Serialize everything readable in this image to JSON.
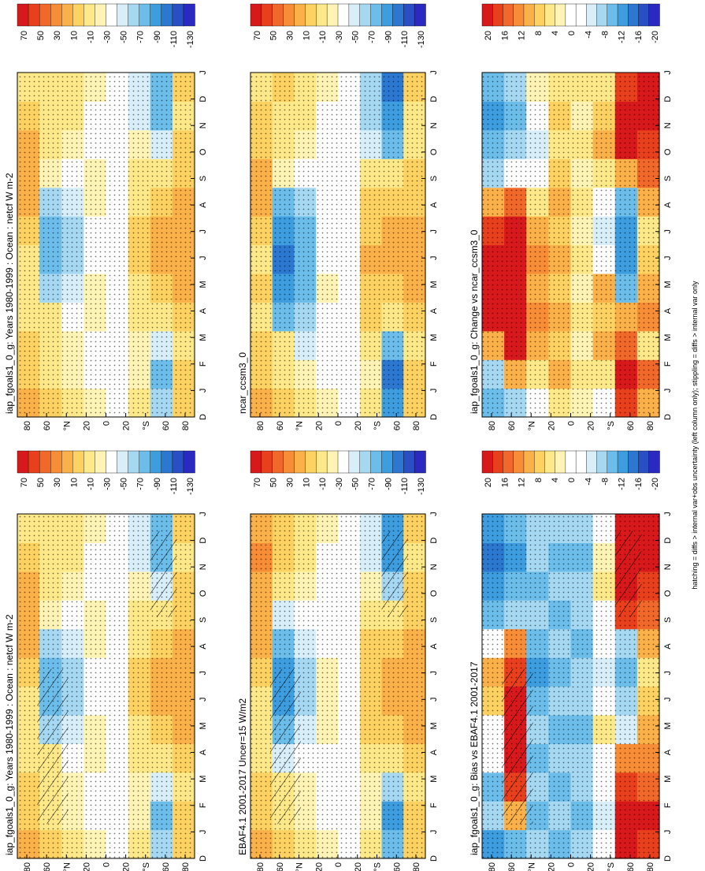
{
  "footer": "hatching = diffs > internal var+obs uncertainty (left column only); stippling = diffs > internal var only",
  "colorbars": {
    "abs": {
      "labels": [
        "70",
        "50",
        "30",
        "10",
        "-10",
        "-30",
        "-50",
        "-70",
        "-90",
        "-110",
        "-130"
      ],
      "colors": [
        "#d7191c",
        "#e8401d",
        "#f1692a",
        "#f78d36",
        "#fbb14a",
        "#fdd262",
        "#fde989",
        "#fff4b5",
        "#ffffff",
        "#d8eef8",
        "#a6d8f2",
        "#6cbdea",
        "#3d9ddf",
        "#2c77d0",
        "#2a4fc5",
        "#2a2ac0"
      ]
    },
    "diff": {
      "labels": [
        "20",
        "16",
        "12",
        "8",
        "4",
        "0",
        "-4",
        "-8",
        "-12",
        "-16",
        "-20"
      ],
      "colors": [
        "#d7191c",
        "#e8401d",
        "#f1692a",
        "#f78d36",
        "#fbb14a",
        "#fdd262",
        "#fde989",
        "#fff4b5",
        "#ffffff",
        "#ffffff",
        "#d8eef8",
        "#a6d8f2",
        "#6cbdea",
        "#3d9ddf",
        "#2c77d0",
        "#2a4fc5",
        "#2a2ac0"
      ]
    }
  },
  "chart_data": [
    {
      "type": "heatmap",
      "title": "iap_fgoals1_0_g: Years 1980-1999 : Ocean : netcf W m-2",
      "x_months": [
        "J",
        "F",
        "M",
        "A",
        "M",
        "J",
        "J",
        "A",
        "S",
        "O",
        "N",
        "D",
        "J"
      ],
      "x_start_label": "D",
      "y_ticks": [
        "80",
        "60",
        "°N",
        "20",
        "0",
        "20",
        "°S",
        "60",
        "80"
      ],
      "cells": [
        [
          "#fbb14a",
          "#fdd262",
          "#fdd262",
          "#fde989",
          "#fde989",
          "#fde989",
          "#fdd262",
          "#fbb14a",
          "#fbb14a",
          "#fbb14a",
          "#fdd262",
          "#fde989"
        ],
        [
          "#fdd262",
          "#fde989",
          "#fde989",
          "#fde989",
          "#a6d8f2",
          "#6cbdea",
          "#6cbdea",
          "#a6d8f2",
          "#fff4b5",
          "#fde989",
          "#fde989",
          "#fde989"
        ],
        [
          "#fde989",
          "#fff4b5",
          "#fff4b5",
          "#ffffff",
          "#d8eef8",
          "#a6d8f2",
          "#a6d8f2",
          "#d8eef8",
          "#ffffff",
          "#fff4b5",
          "#fde989",
          "#fde989"
        ],
        [
          "#fff4b5",
          "#ffffff",
          "#ffffff",
          "#fff4b5",
          "#fff4b5",
          "#ffffff",
          "#ffffff",
          "#fff4b5",
          "#fff4b5",
          "#ffffff",
          "#ffffff",
          "#fff4b5"
        ],
        [
          "#ffffff",
          "#ffffff",
          "#ffffff",
          "#ffffff",
          "#ffffff",
          "#ffffff",
          "#ffffff",
          "#ffffff",
          "#ffffff",
          "#ffffff",
          "#ffffff",
          "#ffffff"
        ],
        [
          "#fde989",
          "#fff4b5",
          "#fff4b5",
          "#fde989",
          "#fde989",
          "#fdd262",
          "#fdd262",
          "#fde989",
          "#fde989",
          "#fff4b5",
          "#d8eef8",
          "#d8eef8"
        ],
        [
          "#a6d8f2",
          "#6cbdea",
          "#d8eef8",
          "#fde989",
          "#fdd262",
          "#fbb14a",
          "#fbb14a",
          "#fdd262",
          "#fde989",
          "#d8eef8",
          "#6cbdea",
          "#6cbdea"
        ],
        [
          "#fdd262",
          "#fdd262",
          "#fde989",
          "#fdd262",
          "#fbb14a",
          "#fbb14a",
          "#fbb14a",
          "#fbb14a",
          "#fdd262",
          "#fdd262",
          "#fde989",
          "#fdd262"
        ]
      ]
    },
    {
      "type": "heatmap",
      "title": "EBAF4.1 2001-2017 Uncer=15 W/m2",
      "x_months": [
        "J",
        "F",
        "M",
        "A",
        "M",
        "J",
        "J",
        "A",
        "S",
        "O",
        "N",
        "D",
        "J"
      ],
      "x_start_label": "D",
      "y_ticks": [
        "80",
        "60",
        "°N",
        "20",
        "0",
        "20",
        "°S",
        "60",
        "80"
      ],
      "cells": [
        [
          "#fbb14a",
          "#fdd262",
          "#fdd262",
          "#fde989",
          "#fde989",
          "#fde989",
          "#fdd262",
          "#fbb14a",
          "#fbb14a",
          "#fbb14a",
          "#f78d36",
          "#fbb14a"
        ],
        [
          "#fdd262",
          "#fde989",
          "#fde989",
          "#d8eef8",
          "#6cbdea",
          "#3d9ddf",
          "#3d9ddf",
          "#6cbdea",
          "#d8eef8",
          "#fde989",
          "#fdd262",
          "#fdd262"
        ],
        [
          "#fde989",
          "#fff4b5",
          "#fff4b5",
          "#ffffff",
          "#d8eef8",
          "#a6d8f2",
          "#a6d8f2",
          "#d8eef8",
          "#ffffff",
          "#fff4b5",
          "#fde989",
          "#fde989"
        ],
        [
          "#fff4b5",
          "#ffffff",
          "#ffffff",
          "#ffffff",
          "#fff4b5",
          "#fff4b5",
          "#fff4b5",
          "#ffffff",
          "#ffffff",
          "#ffffff",
          "#ffffff",
          "#fff4b5"
        ],
        [
          "#ffffff",
          "#ffffff",
          "#ffffff",
          "#ffffff",
          "#ffffff",
          "#ffffff",
          "#ffffff",
          "#ffffff",
          "#ffffff",
          "#ffffff",
          "#ffffff",
          "#ffffff"
        ],
        [
          "#fde989",
          "#fff4b5",
          "#fff4b5",
          "#fde989",
          "#fdd262",
          "#fdd262",
          "#fdd262",
          "#fdd262",
          "#fde989",
          "#fff4b5",
          "#d8eef8",
          "#d8eef8"
        ],
        [
          "#6cbdea",
          "#3d9ddf",
          "#a6d8f2",
          "#fde989",
          "#fdd262",
          "#fbb14a",
          "#fbb14a",
          "#fdd262",
          "#fde989",
          "#a6d8f2",
          "#3d9ddf",
          "#3d9ddf"
        ],
        [
          "#fdd262",
          "#fdd262",
          "#fde989",
          "#fdd262",
          "#fbb14a",
          "#fbb14a",
          "#fbb14a",
          "#fbb14a",
          "#fdd262",
          "#fdd262",
          "#fde989",
          "#fdd262"
        ]
      ]
    },
    {
      "type": "heatmap",
      "title": "iap_fgoals1_0_g: Bias vs EBAF4.1 2001-2017",
      "x_months": [
        "J",
        "F",
        "M",
        "A",
        "M",
        "J",
        "J",
        "A",
        "S",
        "O",
        "N",
        "D",
        "J"
      ],
      "x_start_label": "D",
      "y_ticks": [
        "80",
        "60",
        "°N",
        "20",
        "0",
        "20",
        "°S",
        "60",
        "80"
      ],
      "cells": [
        [
          "#3d9ddf",
          "#a6d8f2",
          "#6cbdea",
          "#ffffff",
          "#ffffff",
          "#fdd262",
          "#fbb14a",
          "#ffffff",
          "#6cbdea",
          "#3d9ddf",
          "#2c77d0",
          "#3d9ddf"
        ],
        [
          "#6cbdea",
          "#fbb14a",
          "#e8401d",
          "#d7191c",
          "#d7191c",
          "#d7191c",
          "#e8401d",
          "#f78d36",
          "#a6d8f2",
          "#6cbdea",
          "#3d9ddf",
          "#6cbdea"
        ],
        [
          "#a6d8f2",
          "#6cbdea",
          "#a6d8f2",
          "#6cbdea",
          "#a6d8f2",
          "#6cbdea",
          "#3d9ddf",
          "#6cbdea",
          "#a6d8f2",
          "#6cbdea",
          "#a6d8f2",
          "#a6d8f2"
        ],
        [
          "#6cbdea",
          "#a6d8f2",
          "#6cbdea",
          "#a6d8f2",
          "#6cbdea",
          "#a6d8f2",
          "#6cbdea",
          "#a6d8f2",
          "#6cbdea",
          "#a6d8f2",
          "#6cbdea",
          "#a6d8f2"
        ],
        [
          "#a6d8f2",
          "#6cbdea",
          "#a6d8f2",
          "#a6d8f2",
          "#6cbdea",
          "#a6d8f2",
          "#a6d8f2",
          "#6cbdea",
          "#a6d8f2",
          "#a6d8f2",
          "#6cbdea",
          "#a6d8f2"
        ],
        [
          "#ffffff",
          "#d8eef8",
          "#ffffff",
          "#ffffff",
          "#fde989",
          "#ffffff",
          "#d8eef8",
          "#ffffff",
          "#ffffff",
          "#fde989",
          "#fff4b5",
          "#ffffff"
        ],
        [
          "#d7191c",
          "#d7191c",
          "#e8401d",
          "#f78d36",
          "#d8eef8",
          "#a6d8f2",
          "#6cbdea",
          "#a6d8f2",
          "#e8401d",
          "#d7191c",
          "#d7191c",
          "#d7191c"
        ],
        [
          "#e8401d",
          "#d7191c",
          "#f1692a",
          "#f78d36",
          "#fbb14a",
          "#fdd262",
          "#fde989",
          "#fbb14a",
          "#f1692a",
          "#e8401d",
          "#d7191c",
          "#d7191c"
        ]
      ]
    },
    {
      "type": "heatmap",
      "title": "iap_fgoals1_0_g: Years 1980-1999 : Ocean : netcf W m-2",
      "x_months": [
        "J",
        "F",
        "M",
        "A",
        "M",
        "J",
        "J",
        "A",
        "S",
        "O",
        "N",
        "D",
        "J"
      ],
      "x_start_label": "D",
      "y_ticks": [
        "80",
        "60",
        "°N",
        "20",
        "0",
        "20",
        "°S",
        "60",
        "80"
      ],
      "cells": [
        [
          "#fbb14a",
          "#fdd262",
          "#fdd262",
          "#fde989",
          "#fde989",
          "#fde989",
          "#fdd262",
          "#fbb14a",
          "#fbb14a",
          "#fbb14a",
          "#fdd262",
          "#fde989"
        ],
        [
          "#fdd262",
          "#fde989",
          "#fde989",
          "#fde989",
          "#a6d8f2",
          "#6cbdea",
          "#6cbdea",
          "#a6d8f2",
          "#fff4b5",
          "#fde989",
          "#fde989",
          "#fde989"
        ],
        [
          "#fde989",
          "#fff4b5",
          "#fff4b5",
          "#ffffff",
          "#d8eef8",
          "#a6d8f2",
          "#a6d8f2",
          "#d8eef8",
          "#ffffff",
          "#fff4b5",
          "#fde989",
          "#fde989"
        ],
        [
          "#fff4b5",
          "#ffffff",
          "#ffffff",
          "#fff4b5",
          "#fff4b5",
          "#ffffff",
          "#ffffff",
          "#fff4b5",
          "#fff4b5",
          "#ffffff",
          "#ffffff",
          "#fff4b5"
        ],
        [
          "#ffffff",
          "#ffffff",
          "#ffffff",
          "#ffffff",
          "#ffffff",
          "#ffffff",
          "#ffffff",
          "#ffffff",
          "#ffffff",
          "#ffffff",
          "#ffffff",
          "#ffffff"
        ],
        [
          "#fde989",
          "#fff4b5",
          "#fff4b5",
          "#fde989",
          "#fde989",
          "#fdd262",
          "#fdd262",
          "#fde989",
          "#fde989",
          "#fff4b5",
          "#d8eef8",
          "#d8eef8"
        ],
        [
          "#a6d8f2",
          "#6cbdea",
          "#d8eef8",
          "#fde989",
          "#fdd262",
          "#fbb14a",
          "#fbb14a",
          "#fdd262",
          "#fde989",
          "#d8eef8",
          "#6cbdea",
          "#6cbdea"
        ],
        [
          "#fdd262",
          "#fdd262",
          "#fde989",
          "#fdd262",
          "#fbb14a",
          "#fbb14a",
          "#fbb14a",
          "#fbb14a",
          "#fdd262",
          "#fdd262",
          "#fde989",
          "#fdd262"
        ]
      ]
    },
    {
      "type": "heatmap",
      "title": "ncar_ccsm3_0",
      "x_months": [
        "J",
        "F",
        "M",
        "A",
        "M",
        "J",
        "J",
        "A",
        "S",
        "O",
        "N",
        "D",
        "J"
      ],
      "x_start_label": "D",
      "y_ticks": [
        "80",
        "60",
        "°N",
        "20",
        "0",
        "20",
        "°S",
        "60",
        "80"
      ],
      "cells": [
        [
          "#fbb14a",
          "#fdd262",
          "#fdd262",
          "#fde989",
          "#fdd262",
          "#fde989",
          "#fdd262",
          "#fbb14a",
          "#fbb14a",
          "#fdd262",
          "#fdd262",
          "#fde989"
        ],
        [
          "#fdd262",
          "#fde989",
          "#fde989",
          "#6cbdea",
          "#3d9ddf",
          "#2c77d0",
          "#3d9ddf",
          "#6cbdea",
          "#fff4b5",
          "#fde989",
          "#fde989",
          "#fdd262"
        ],
        [
          "#fde989",
          "#fff4b5",
          "#d8eef8",
          "#a6d8f2",
          "#6cbdea",
          "#6cbdea",
          "#6cbdea",
          "#a6d8f2",
          "#ffffff",
          "#fff4b5",
          "#fde989",
          "#fde989"
        ],
        [
          "#fff4b5",
          "#ffffff",
          "#ffffff",
          "#ffffff",
          "#fff4b5",
          "#ffffff",
          "#ffffff",
          "#ffffff",
          "#ffffff",
          "#ffffff",
          "#ffffff",
          "#fff4b5"
        ],
        [
          "#ffffff",
          "#ffffff",
          "#ffffff",
          "#ffffff",
          "#ffffff",
          "#ffffff",
          "#ffffff",
          "#ffffff",
          "#ffffff",
          "#ffffff",
          "#ffffff",
          "#ffffff"
        ],
        [
          "#fde989",
          "#fff4b5",
          "#fde989",
          "#fdd262",
          "#fdd262",
          "#fbb14a",
          "#fdd262",
          "#fdd262",
          "#fde989",
          "#d8eef8",
          "#a6d8f2",
          "#a6d8f2"
        ],
        [
          "#3d9ddf",
          "#2c77d0",
          "#6cbdea",
          "#fde989",
          "#fdd262",
          "#fbb14a",
          "#fbb14a",
          "#fdd262",
          "#fde989",
          "#6cbdea",
          "#3d9ddf",
          "#2c77d0"
        ],
        [
          "#fdd262",
          "#fdd262",
          "#fde989",
          "#fdd262",
          "#fbb14a",
          "#fbb14a",
          "#fbb14a",
          "#fdd262",
          "#fdd262",
          "#fde989",
          "#fde989",
          "#fdd262"
        ]
      ]
    },
    {
      "type": "heatmap",
      "title": "iap_fgoals1_0_g: Change vs ncar_ccsm3_0",
      "x_months": [
        "J",
        "F",
        "M",
        "A",
        "M",
        "J",
        "J",
        "A",
        "S",
        "O",
        "N",
        "D",
        "J"
      ],
      "x_start_label": "D",
      "y_ticks": [
        "80",
        "60",
        "°N",
        "20",
        "0",
        "20",
        "°S",
        "60",
        "80"
      ],
      "cells": [
        [
          "#6cbdea",
          "#a6d8f2",
          "#fbb14a",
          "#d7191c",
          "#d7191c",
          "#d7191c",
          "#e8401d",
          "#fbb14a",
          "#a6d8f2",
          "#6cbdea",
          "#3d9ddf",
          "#6cbdea"
        ],
        [
          "#a6d8f2",
          "#fbb14a",
          "#d7191c",
          "#d7191c",
          "#d7191c",
          "#d7191c",
          "#d7191c",
          "#f1692a",
          "#ffffff",
          "#a6d8f2",
          "#6cbdea",
          "#a6d8f2"
        ],
        [
          "#ffffff",
          "#fde989",
          "#fbb14a",
          "#f78d36",
          "#fbb14a",
          "#f78d36",
          "#fbb14a",
          "#fde989",
          "#ffffff",
          "#d8eef8",
          "#ffffff",
          "#fff4b5"
        ],
        [
          "#fde989",
          "#fbb14a",
          "#fdd262",
          "#fbb14a",
          "#fdd262",
          "#fbb14a",
          "#fdd262",
          "#fbb14a",
          "#fdd262",
          "#fde989",
          "#fdd262",
          "#fde989"
        ],
        [
          "#fff4b5",
          "#fde989",
          "#fff4b5",
          "#fde989",
          "#fff4b5",
          "#fde989",
          "#fff4b5",
          "#fde989",
          "#fff4b5",
          "#fde989",
          "#fff4b5",
          "#fde989"
        ],
        [
          "#ffffff",
          "#fde989",
          "#fbb14a",
          "#fdd262",
          "#fbb14a",
          "#ffffff",
          "#d8eef8",
          "#ffffff",
          "#fde989",
          "#fbb14a",
          "#fdd262",
          "#fde989"
        ],
        [
          "#e8401d",
          "#d7191c",
          "#f1692a",
          "#fbb14a",
          "#6cbdea",
          "#3d9ddf",
          "#3d9ddf",
          "#6cbdea",
          "#fbb14a",
          "#d7191c",
          "#d7191c",
          "#e8401d"
        ],
        [
          "#fbb14a",
          "#f1692a",
          "#fde989",
          "#f78d36",
          "#fbb14a",
          "#fdd262",
          "#fde989",
          "#fbb14a",
          "#f1692a",
          "#e8401d",
          "#d7191c",
          "#d7191c"
        ]
      ]
    }
  ]
}
